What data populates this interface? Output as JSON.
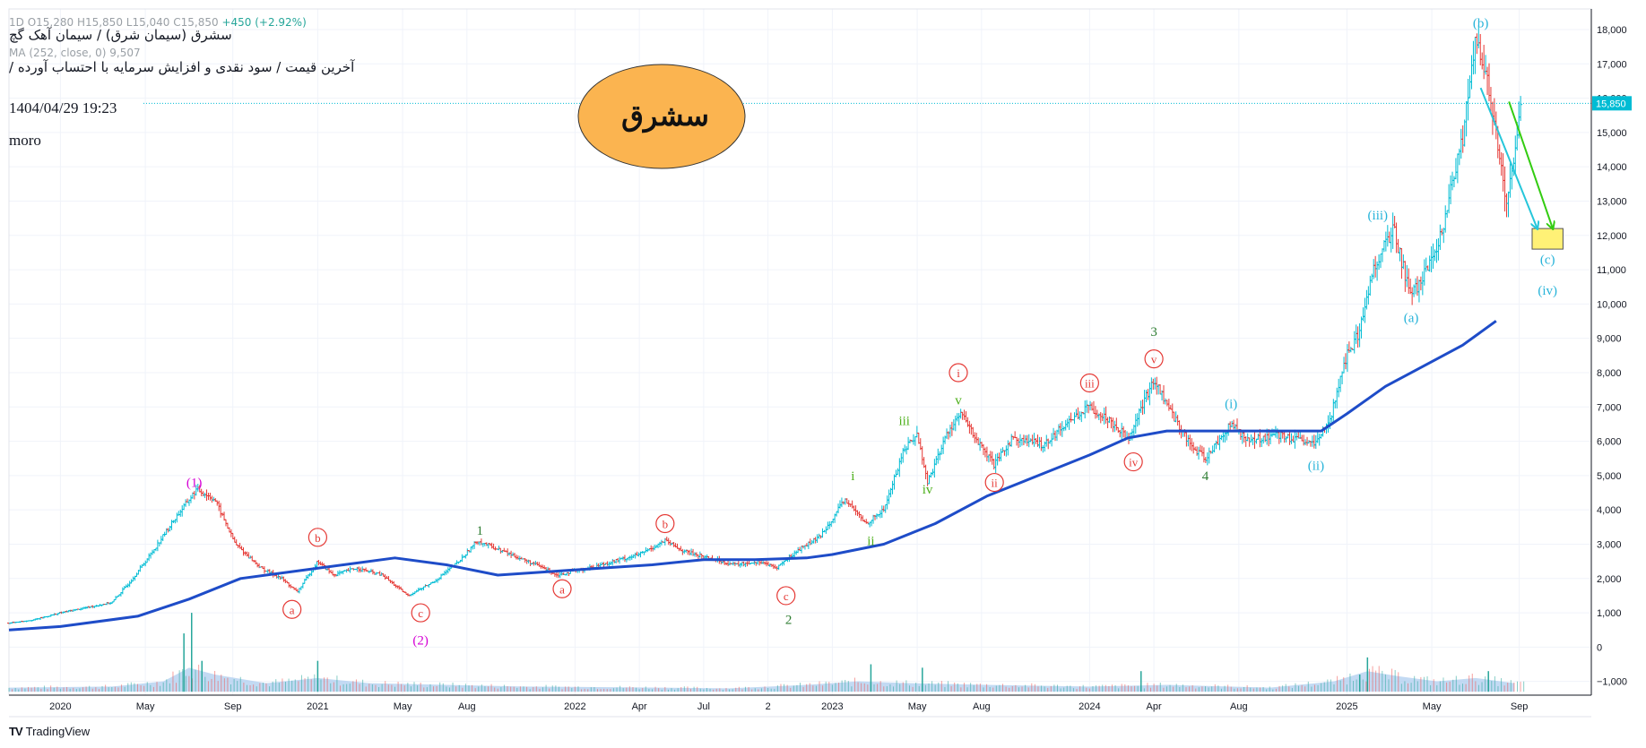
{
  "header": {
    "ohlc_text": "1D  O15,280  H15,850  L15,040  C15,850",
    "change_text": "+450 (+2.92%)",
    "symbol_title": "سشرق (سیمان شرق) / سیمان آهک گچ",
    "ma_text": "MA (252, close, 0)  9,507",
    "subtitle": "آخرین قیمت / سود نقدی و افزایش سرمایه با احتساب آورده /",
    "datetime": "1404/04/29 19:23",
    "author": "moro"
  },
  "badge": {
    "label": "سشرق",
    "fill": "#FBB450"
  },
  "footer": {
    "brand": "TradingView",
    "logo": "TV"
  },
  "price_tag": {
    "label": "15,850",
    "color": "#00bcd4"
  },
  "colors": {
    "up": "#26a69a",
    "down": "#ef5350",
    "price_up": "#00bcd4",
    "price_down": "#e53935",
    "ma": "#1e4cc8",
    "volume": "#a9cbee",
    "grid": "#f0f3fa",
    "last_price": "#00bcd4",
    "wave_red": "#e53935",
    "wave_magenta": "#d500d5",
    "wave_darkgreen": "#2e7d32",
    "wave_lime": "#4caf1a",
    "wave_cyan": "#26b3d9",
    "arrow_cyan": "#26c6da",
    "arrow_green": "#33cc11",
    "target_box": "#fff176"
  },
  "chart_data": {
    "type": "candlestick",
    "title": "سشرق (سیمان شرق) / سیمان آهک گچ",
    "ylim": [
      -1400,
      18600
    ],
    "y_ticks": [
      "18,000",
      "17,000",
      "16,000",
      "15,000",
      "14,000",
      "13,000",
      "12,000",
      "11,000",
      "10,000",
      "9,000",
      "8,000",
      "7,000",
      "6,000",
      "5,000",
      "4,000",
      "3,000",
      "2,000",
      "1,000",
      "0",
      "−1,000"
    ],
    "y_tick_values": [
      18000,
      17000,
      16000,
      15000,
      14000,
      13000,
      12000,
      11000,
      10000,
      9000,
      8000,
      7000,
      6000,
      5000,
      4000,
      3000,
      2000,
      1000,
      0,
      -1000
    ],
    "x_ticks": [
      "2020",
      "May",
      "Sep",
      "2021",
      "May",
      "Aug",
      "2022",
      "Apr",
      "Jul",
      "2",
      "2023",
      "May",
      "Aug",
      "2024",
      "Apr",
      "Aug",
      "2025",
      "May",
      "Sep"
    ],
    "x_tick_dates": [
      2020.0,
      2020.33,
      2020.67,
      2021.0,
      2021.33,
      2021.58,
      2022.0,
      2022.25,
      2022.5,
      2022.75,
      2023.0,
      2023.33,
      2023.58,
      2024.0,
      2024.25,
      2024.58,
      2025.0,
      2025.33,
      2025.67
    ],
    "x_range": [
      2019.8,
      2025.95
    ],
    "last_price": 15850,
    "price_series": [
      [
        2019.8,
        700
      ],
      [
        2019.9,
        800
      ],
      [
        2020.0,
        1000
      ],
      [
        2020.1,
        1150
      ],
      [
        2020.2,
        1300
      ],
      [
        2020.27,
        1900
      ],
      [
        2020.35,
        2700
      ],
      [
        2020.45,
        3800
      ],
      [
        2020.53,
        4600
      ],
      [
        2020.6,
        4300
      ],
      [
        2020.68,
        3000
      ],
      [
        2020.78,
        2300
      ],
      [
        2020.86,
        2000
      ],
      [
        2020.92,
        1600
      ],
      [
        2021.0,
        2500
      ],
      [
        2021.06,
        2100
      ],
      [
        2021.15,
        2300
      ],
      [
        2021.25,
        2100
      ],
      [
        2021.35,
        1500
      ],
      [
        2021.45,
        1900
      ],
      [
        2021.55,
        2500
      ],
      [
        2021.62,
        3100
      ],
      [
        2021.75,
        2700
      ],
      [
        2021.88,
        2300
      ],
      [
        2021.93,
        2100
      ],
      [
        2022.05,
        2300
      ],
      [
        2022.15,
        2500
      ],
      [
        2022.25,
        2700
      ],
      [
        2022.35,
        3100
      ],
      [
        2022.42,
        2800
      ],
      [
        2022.52,
        2600
      ],
      [
        2022.62,
        2400
      ],
      [
        2022.72,
        2500
      ],
      [
        2022.78,
        2300
      ],
      [
        2022.88,
        2900
      ],
      [
        2022.95,
        3200
      ],
      [
        2023.05,
        4300
      ],
      [
        2023.13,
        3600
      ],
      [
        2023.2,
        4000
      ],
      [
        2023.28,
        5800
      ],
      [
        2023.33,
        6200
      ],
      [
        2023.37,
        4800
      ],
      [
        2023.45,
        6300
      ],
      [
        2023.5,
        6800
      ],
      [
        2023.58,
        5800
      ],
      [
        2023.63,
        5300
      ],
      [
        2023.7,
        6100
      ],
      [
        2023.82,
        5900
      ],
      [
        2023.92,
        6600
      ],
      [
        2024.0,
        7000
      ],
      [
        2024.08,
        6600
      ],
      [
        2024.15,
        6100
      ],
      [
        2024.25,
        7800
      ],
      [
        2024.32,
        6800
      ],
      [
        2024.4,
        5800
      ],
      [
        2024.45,
        5500
      ],
      [
        2024.55,
        6500
      ],
      [
        2024.62,
        6000
      ],
      [
        2024.72,
        6200
      ],
      [
        2024.82,
        6000
      ],
      [
        2024.88,
        5900
      ],
      [
        2024.94,
        6800
      ],
      [
        2025.0,
        8500
      ],
      [
        2025.05,
        9200
      ],
      [
        2025.1,
        11000
      ],
      [
        2025.18,
        12200
      ],
      [
        2025.25,
        10200
      ],
      [
        2025.35,
        11500
      ],
      [
        2025.45,
        14800
      ],
      [
        2025.5,
        17700
      ],
      [
        2025.56,
        16000
      ],
      [
        2025.62,
        12800
      ],
      [
        2025.68,
        15850
      ]
    ],
    "ma_series": [
      [
        2019.8,
        500
      ],
      [
        2020.0,
        600
      ],
      [
        2020.3,
        900
      ],
      [
        2020.5,
        1400
      ],
      [
        2020.7,
        2000
      ],
      [
        2020.9,
        2200
      ],
      [
        2021.1,
        2400
      ],
      [
        2021.3,
        2600
      ],
      [
        2021.5,
        2400
      ],
      [
        2021.7,
        2100
      ],
      [
        2021.9,
        2200
      ],
      [
        2022.1,
        2300
      ],
      [
        2022.3,
        2400
      ],
      [
        2022.5,
        2550
      ],
      [
        2022.7,
        2550
      ],
      [
        2022.9,
        2600
      ],
      [
        2023.0,
        2700
      ],
      [
        2023.2,
        3000
      ],
      [
        2023.4,
        3600
      ],
      [
        2023.6,
        4400
      ],
      [
        2023.8,
        5000
      ],
      [
        2024.0,
        5600
      ],
      [
        2024.15,
        6100
      ],
      [
        2024.3,
        6300
      ],
      [
        2024.6,
        6300
      ],
      [
        2024.9,
        6300
      ],
      [
        2025.0,
        6800
      ],
      [
        2025.15,
        7600
      ],
      [
        2025.3,
        8200
      ],
      [
        2025.45,
        8800
      ],
      [
        2025.58,
        9507
      ]
    ],
    "volume_spikes": [
      [
        2020.48,
        1700
      ],
      [
        2020.51,
        2300
      ],
      [
        2020.55,
        900
      ],
      [
        2021.0,
        900
      ],
      [
        2023.15,
        800
      ],
      [
        2023.35,
        700
      ],
      [
        2024.2,
        600
      ],
      [
        2025.08,
        1000
      ],
      [
        2025.05,
        500
      ],
      [
        2025.55,
        600
      ]
    ],
    "volume_area": [
      [
        2019.8,
        120
      ],
      [
        2020.2,
        150
      ],
      [
        2020.4,
        300
      ],
      [
        2020.5,
        700
      ],
      [
        2020.6,
        500
      ],
      [
        2020.8,
        250
      ],
      [
        2021.0,
        400
      ],
      [
        2021.2,
        250
      ],
      [
        2021.5,
        200
      ],
      [
        2021.8,
        150
      ],
      [
        2022.2,
        130
      ],
      [
        2022.6,
        100
      ],
      [
        2022.9,
        200
      ],
      [
        2023.1,
        300
      ],
      [
        2023.3,
        250
      ],
      [
        2023.6,
        200
      ],
      [
        2024.0,
        150
      ],
      [
        2024.3,
        200
      ],
      [
        2024.7,
        120
      ],
      [
        2024.95,
        300
      ],
      [
        2025.08,
        600
      ],
      [
        2025.2,
        450
      ],
      [
        2025.35,
        300
      ],
      [
        2025.5,
        400
      ],
      [
        2025.65,
        250
      ]
    ],
    "wave_labels": [
      {
        "text": "(1)",
        "t": 2020.52,
        "v": 4800,
        "color": "wave_magenta",
        "circle": false
      },
      {
        "text": "(2)",
        "t": 2021.4,
        "v": 200,
        "color": "wave_magenta",
        "circle": false
      },
      {
        "text": "a",
        "t": 2020.9,
        "v": 1100,
        "color": "wave_red",
        "circle": true
      },
      {
        "text": "b",
        "t": 2021.0,
        "v": 3200,
        "color": "wave_red",
        "circle": true
      },
      {
        "text": "c",
        "t": 2021.4,
        "v": 1000,
        "color": "wave_red",
        "circle": true
      },
      {
        "text": "1",
        "t": 2021.63,
        "v": 3400,
        "color": "wave_darkgreen",
        "circle": false
      },
      {
        "text": "a",
        "t": 2021.95,
        "v": 1700,
        "color": "wave_red",
        "circle": true
      },
      {
        "text": "b",
        "t": 2022.35,
        "v": 3600,
        "color": "wave_red",
        "circle": true
      },
      {
        "text": "c",
        "t": 2022.82,
        "v": 1500,
        "color": "wave_red",
        "circle": true
      },
      {
        "text": "2",
        "t": 2022.83,
        "v": 800,
        "color": "wave_darkgreen",
        "circle": false
      },
      {
        "text": "i",
        "t": 2023.08,
        "v": 5000,
        "color": "wave_lime",
        "circle": false
      },
      {
        "text": "ii",
        "t": 2023.15,
        "v": 3100,
        "color": "wave_lime",
        "circle": false
      },
      {
        "text": "iii",
        "t": 2023.28,
        "v": 6600,
        "color": "wave_lime",
        "circle": false
      },
      {
        "text": "iv",
        "t": 2023.37,
        "v": 4600,
        "color": "wave_lime",
        "circle": false
      },
      {
        "text": "v",
        "t": 2023.49,
        "v": 7200,
        "color": "wave_lime",
        "circle": false
      },
      {
        "text": "i",
        "t": 2023.49,
        "v": 8000,
        "color": "wave_red",
        "circle": true
      },
      {
        "text": "ii",
        "t": 2023.63,
        "v": 4800,
        "color": "wave_red",
        "circle": true
      },
      {
        "text": "iii",
        "t": 2024.0,
        "v": 7700,
        "color": "wave_red",
        "circle": true
      },
      {
        "text": "iv",
        "t": 2024.17,
        "v": 5400,
        "color": "wave_red",
        "circle": true
      },
      {
        "text": "v",
        "t": 2024.25,
        "v": 8400,
        "color": "wave_red",
        "circle": true
      },
      {
        "text": "3",
        "t": 2024.25,
        "v": 9200,
        "color": "wave_darkgreen",
        "circle": false
      },
      {
        "text": "4",
        "t": 2024.45,
        "v": 5000,
        "color": "wave_darkgreen",
        "circle": false
      },
      {
        "text": "(i)",
        "t": 2024.55,
        "v": 7100,
        "color": "wave_cyan",
        "circle": false
      },
      {
        "text": "(ii)",
        "t": 2024.88,
        "v": 5300,
        "color": "wave_cyan",
        "circle": false
      },
      {
        "text": "(iii)",
        "t": 2025.12,
        "v": 12600,
        "color": "wave_cyan",
        "circle": false
      },
      {
        "text": "(a)",
        "t": 2025.25,
        "v": 9600,
        "color": "wave_cyan",
        "circle": false
      },
      {
        "text": "(b)",
        "t": 2025.52,
        "v": 18200,
        "color": "wave_cyan",
        "circle": false
      },
      {
        "text": "(c)",
        "t": 2025.78,
        "v": 11300,
        "color": "wave_cyan",
        "circle": false
      },
      {
        "text": "(iv)",
        "t": 2025.78,
        "v": 10400,
        "color": "wave_cyan",
        "circle": false
      }
    ],
    "projections": [
      {
        "from": [
          2025.52,
          16300
        ],
        "to": [
          2025.74,
          12200
        ],
        "color": "arrow_cyan"
      },
      {
        "from": [
          2025.63,
          15900
        ],
        "to": [
          2025.8,
          12200
        ],
        "color": "arrow_green"
      }
    ],
    "target_box": {
      "t0": 2025.72,
      "t1": 2025.84,
      "v0": 11600,
      "v1": 12200
    }
  }
}
